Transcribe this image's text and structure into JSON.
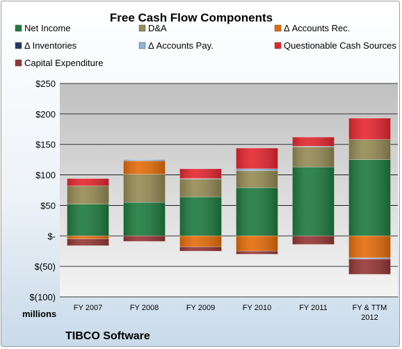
{
  "chart_data": {
    "type": "bar",
    "stacked": true,
    "title": "Free Cash Flow Components",
    "units_label": "millions",
    "company": "TIBCO Software",
    "categories": [
      "FY 2007",
      "FY 2008",
      "FY 2009",
      "FY 2010",
      "FY 2011",
      "FY & TTM|2012"
    ],
    "ylim": [
      -100,
      250
    ],
    "yticks": [
      -100,
      -50,
      0,
      50,
      100,
      150,
      200,
      250
    ],
    "ytick_labels": [
      "$(100)",
      "$(50)",
      "$-",
      "$50",
      "$100",
      "$150",
      "$200",
      "$250"
    ],
    "grid": true,
    "legend_position": "top",
    "series": [
      {
        "name": "Net Income",
        "color": "#1e7a3e",
        "values": [
          52,
          55,
          64,
          79,
          113,
          125
        ]
      },
      {
        "name": "D&A",
        "color": "#948a54",
        "values": [
          30,
          46,
          29,
          28,
          33,
          33
        ]
      },
      {
        "name": "Δ Accounts Rec.",
        "color": "#e36c09",
        "values": [
          -5,
          22,
          -18,
          -25,
          0,
          -36
        ]
      },
      {
        "name": "Δ Inventories",
        "color": "#1f3864",
        "values": [
          0,
          0,
          0,
          0,
          0,
          0
        ]
      },
      {
        "name": "Δ Accounts Pay.",
        "color": "#8db3e2",
        "values": [
          0,
          2,
          1,
          3,
          1,
          -2
        ]
      },
      {
        "name": "Questionable Cash Sources",
        "color": "#e3262e",
        "values": [
          12,
          0,
          16,
          34,
          15,
          35
        ]
      },
      {
        "name": "Capital Expenditure",
        "color": "#943634",
        "values": [
          -11,
          -9,
          -7,
          -5,
          -14,
          -25
        ]
      }
    ]
  }
}
